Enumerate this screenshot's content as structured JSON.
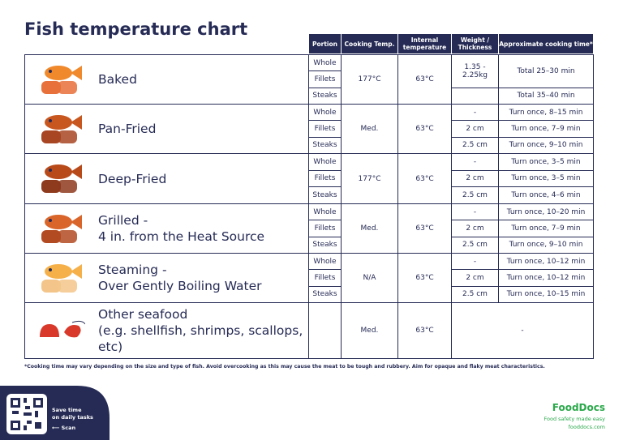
{
  "title": "Fish temperature chart",
  "header": [
    "Portion",
    "Cooking Temp.",
    "Internal temperature",
    "Weight / Thickness",
    "Approximate cooking time*"
  ],
  "rows": [
    {
      "method": [
        "Baked"
      ],
      "portions": [
        "Whole",
        "Fillets",
        "Steaks"
      ],
      "cooking_temp": "177°C",
      "internal_temp": "63°C",
      "weight": [
        "1.35 - 2.25kg"
      ],
      "time": [
        "Total 25–30 min",
        "Total 35–40 min"
      ]
    },
    {
      "method": [
        "Pan-Fried"
      ],
      "portions": [
        "Whole",
        "Fillets",
        "Steaks"
      ],
      "cooking_temp": "Med.",
      "internal_temp": "63°C",
      "weight": [
        "-",
        "2 cm",
        "2.5 cm"
      ],
      "time": [
        "Turn once, 8–15 min",
        "Turn once, 7–9 min",
        "Turn once, 9–10 min"
      ]
    },
    {
      "method": [
        "Deep-Fried"
      ],
      "portions": [
        "Whole",
        "Fillets",
        "Steaks"
      ],
      "cooking_temp": "177°C",
      "internal_temp": "63°C",
      "weight": [
        "-",
        "2 cm",
        "2.5 cm"
      ],
      "time": [
        "Turn once, 3–5 min",
        "Turn once, 3–5 min",
        "Turn once, 4–6 min"
      ]
    },
    {
      "method": [
        "Grilled -",
        "4 in. from the Heat Source"
      ],
      "portions": [
        "Whole",
        "Fillets",
        "Steaks"
      ],
      "cooking_temp": "Med.",
      "internal_temp": "63°C",
      "weight": [
        "-",
        "2 cm",
        "2.5 cm"
      ],
      "time": [
        "Turn once, 10–20 min",
        "Turn once, 7–9 min",
        "Turn once, 9–10 min"
      ]
    },
    {
      "method": [
        "Steaming -",
        "Over Gently Boiling Water"
      ],
      "portions": [
        "Whole",
        "Fillets",
        "Steaks"
      ],
      "cooking_temp": "N/A",
      "internal_temp": "63°C",
      "weight": [
        "-",
        "2 cm",
        "2.5 cm"
      ],
      "time": [
        "Turn once, 10–12 min",
        "Turn once, 10–12 min",
        "Turn once, 10–15 min"
      ]
    },
    {
      "method": [
        "Other seafood",
        "(e.g. shellfish, shrimps, scallops, etc)"
      ],
      "cooking_temp": "Med.",
      "internal_temp": "63°C",
      "weight_time": "-"
    }
  ],
  "footnote": "*Cooking time may vary depending on the size and type of fish. Avoid overcooking as this may cause the meat to be tough and rubbery. Aim for opaque and flaky meat characteristics.",
  "promo": {
    "text": [
      "Save time",
      "on daily tasks"
    ],
    "scan": "⟵  Scan"
  },
  "brand": {
    "name": "FoodDocs",
    "tagline": "Food safety made easy",
    "url": "fooddocs.com"
  }
}
